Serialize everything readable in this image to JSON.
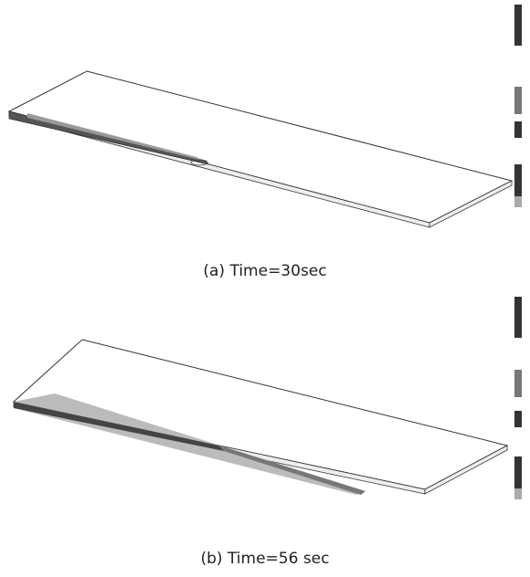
{
  "panels": [
    {
      "caption": "(a) Time=30sec"
    },
    {
      "caption": "(b) Time=56 sec"
    }
  ]
}
